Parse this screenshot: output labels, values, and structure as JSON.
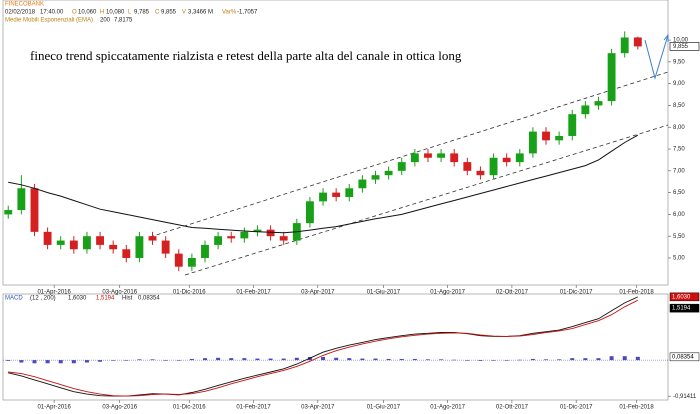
{
  "chart_data": [
    {
      "type": "candlestick",
      "header": {
        "symbol": "FINECOBANK",
        "date": "02/02/2018",
        "time": "17:40.00",
        "fields": [
          {
            "label": "O",
            "value": "10,060"
          },
          {
            "label": "H",
            "value": "10,080"
          },
          {
            "label": "L",
            "value": "9,785"
          },
          {
            "label": "C",
            "value": "9,855"
          },
          {
            "label": "V",
            "value": "3,3466 M"
          },
          {
            "label": "Var%",
            "value": "-1,7057"
          }
        ]
      },
      "annotation": "fineco trend spiccatamente rialzista e retest della parte alta del canale in ottica long",
      "up_color": "#18a018",
      "down_color": "#d42020",
      "open": [
        6.0,
        6.1,
        6.6,
        5.6,
        5.3,
        5.4,
        5.2,
        5.5,
        5.3,
        5.2,
        5.0,
        5.5,
        5.4,
        5.1,
        4.8,
        5.0,
        5.3,
        5.5,
        5.45,
        5.6,
        5.65,
        5.5,
        5.4,
        5.8,
        6.3,
        6.5,
        6.4,
        6.6,
        6.8,
        6.9,
        7.0,
        7.2,
        7.4,
        7.3,
        7.4,
        7.2,
        7.0,
        6.9,
        7.3,
        7.2,
        7.4,
        7.9,
        7.7,
        7.8,
        8.3,
        8.5,
        8.6,
        9.7,
        10.06
      ],
      "high": [
        6.2,
        6.9,
        6.7,
        5.7,
        5.5,
        5.5,
        5.6,
        5.6,
        5.4,
        5.3,
        5.6,
        5.6,
        5.5,
        5.2,
        5.1,
        5.4,
        5.6,
        5.6,
        5.7,
        5.75,
        5.75,
        5.6,
        5.9,
        6.4,
        6.6,
        6.6,
        6.7,
        6.9,
        7.0,
        7.1,
        7.3,
        7.5,
        7.5,
        7.5,
        7.5,
        7.3,
        7.1,
        7.4,
        7.4,
        7.5,
        8.0,
        8.0,
        7.9,
        8.4,
        8.6,
        8.7,
        9.8,
        10.2,
        10.08
      ],
      "low": [
        5.9,
        6.0,
        5.5,
        5.2,
        5.2,
        5.1,
        5.1,
        5.2,
        5.1,
        4.9,
        4.9,
        5.3,
        5.0,
        4.7,
        4.7,
        4.9,
        5.2,
        5.35,
        5.35,
        5.5,
        5.4,
        5.3,
        5.3,
        5.7,
        6.2,
        6.3,
        6.3,
        6.5,
        6.7,
        6.8,
        6.9,
        7.1,
        7.2,
        7.2,
        7.1,
        6.9,
        6.8,
        6.8,
        7.1,
        7.1,
        7.3,
        7.6,
        7.6,
        7.7,
        8.2,
        8.4,
        8.5,
        9.6,
        9.785
      ],
      "close": [
        6.1,
        6.6,
        5.6,
        5.3,
        5.4,
        5.2,
        5.5,
        5.3,
        5.2,
        5.0,
        5.5,
        5.4,
        5.1,
        4.8,
        5.0,
        5.3,
        5.5,
        5.45,
        5.6,
        5.65,
        5.5,
        5.4,
        5.8,
        6.3,
        6.5,
        6.4,
        6.6,
        6.8,
        6.9,
        7.0,
        7.2,
        7.4,
        7.3,
        7.4,
        7.2,
        7.0,
        6.9,
        7.3,
        7.2,
        7.4,
        7.9,
        7.7,
        7.8,
        8.3,
        8.5,
        8.6,
        9.7,
        10.06,
        9.855
      ],
      "series": [
        {
          "name": "Medie Mobili Esponenziali (EMA)",
          "period": "200",
          "last_label": "7,8175",
          "color": "#111111",
          "values": [
            6.74,
            6.68,
            6.6,
            6.5,
            6.42,
            6.32,
            6.22,
            6.12,
            6.06,
            6.0,
            5.94,
            5.88,
            5.82,
            5.76,
            5.7,
            5.68,
            5.66,
            5.64,
            5.62,
            5.6,
            5.59,
            5.58,
            5.6,
            5.64,
            5.68,
            5.72,
            5.78,
            5.84,
            5.9,
            5.95,
            6.0,
            6.08,
            6.16,
            6.24,
            6.32,
            6.4,
            6.48,
            6.56,
            6.64,
            6.72,
            6.8,
            6.88,
            6.96,
            7.04,
            7.12,
            7.25,
            7.45,
            7.65,
            7.8175
          ]
        }
      ],
      "price_marker": {
        "value": 9.855,
        "label": "9,855"
      },
      "xlim": [
        -0.4,
        50.3
      ],
      "ylim": [
        4.38,
        10.92
      ],
      "yticks": [
        {
          "value": 5,
          "label": "5,00"
        },
        {
          "value": 5.5,
          "label": "5,50"
        },
        {
          "value": 6,
          "label": "6,00"
        },
        {
          "value": 6.5,
          "label": "6,50"
        },
        {
          "value": 7,
          "label": "7,00"
        },
        {
          "value": 7.5,
          "label": "7,50"
        },
        {
          "value": 8,
          "label": "8,00"
        },
        {
          "value": 8.5,
          "label": "8,50"
        },
        {
          "value": 9,
          "label": "9,00"
        },
        {
          "value": 9.5,
          "label": "9,50"
        },
        {
          "value": 10,
          "label": "10,00"
        }
      ],
      "xticks": [
        {
          "value": 3.5,
          "label": "01-Apr-2016"
        },
        {
          "value": 8.5,
          "label": "03-Ago-2016"
        },
        {
          "value": 13.8,
          "label": "01-Dic-2016"
        },
        {
          "value": 18.7,
          "label": "01-Feb-2017"
        },
        {
          "value": 23.6,
          "label": "03-Apr-2017"
        },
        {
          "value": 28.6,
          "label": "01-Giu-2017"
        },
        {
          "value": 33.5,
          "label": "01-Ago-2017"
        },
        {
          "value": 38.4,
          "label": "02-Ott-2017"
        },
        {
          "value": 43.3,
          "label": "01-Dic-2017"
        },
        {
          "value": 47.9,
          "label": "01-Feb-2018"
        }
      ],
      "grid": false
    },
    {
      "type": "macd",
      "title": "MACD",
      "params": "(12 , 200)",
      "series": [
        {
          "color": "#111111",
          "last_label": "1,6030",
          "values": [
            -0.32,
            -0.4,
            -0.5,
            -0.6,
            -0.7,
            -0.8,
            -0.86,
            -0.9,
            -0.91,
            -0.91,
            -0.88,
            -0.85,
            -0.86,
            -0.88,
            -0.82,
            -0.74,
            -0.64,
            -0.55,
            -0.46,
            -0.38,
            -0.3,
            -0.22,
            -0.1,
            0.05,
            0.2,
            0.3,
            0.38,
            0.45,
            0.52,
            0.57,
            0.62,
            0.66,
            0.68,
            0.7,
            0.7,
            0.67,
            0.62,
            0.6,
            0.6,
            0.62,
            0.68,
            0.72,
            0.76,
            0.85,
            0.95,
            1.05,
            1.25,
            1.45,
            1.603
          ]
        },
        {
          "color": "#cc1111",
          "last_label": "1,5194",
          "values": [
            -0.3,
            -0.34,
            -0.42,
            -0.52,
            -0.62,
            -0.72,
            -0.8,
            -0.86,
            -0.9,
            -0.91,
            -0.9,
            -0.87,
            -0.86,
            -0.87,
            -0.85,
            -0.79,
            -0.7,
            -0.6,
            -0.51,
            -0.42,
            -0.34,
            -0.26,
            -0.16,
            -0.03,
            0.12,
            0.24,
            0.33,
            0.41,
            0.48,
            0.54,
            0.59,
            0.63,
            0.66,
            0.68,
            0.69,
            0.68,
            0.64,
            0.61,
            0.6,
            0.61,
            0.65,
            0.7,
            0.74,
            0.8,
            0.9,
            1.0,
            1.15,
            1.35,
            1.5194
          ]
        }
      ],
      "histogram": {
        "name": "Hist",
        "color": "#4a4ab8",
        "last_label": "0,08354",
        "values": [
          -0.02,
          -0.06,
          -0.08,
          -0.08,
          -0.08,
          -0.08,
          -0.06,
          -0.04,
          -0.01,
          0,
          0.02,
          0.02,
          0,
          -0.01,
          0.03,
          0.05,
          0.06,
          0.05,
          0.05,
          0.04,
          0.04,
          0.04,
          0.06,
          0.08,
          0.08,
          0.06,
          0.05,
          0.04,
          0.04,
          0.03,
          0.03,
          0.03,
          0.02,
          0.02,
          0.01,
          -0.01,
          -0.02,
          -0.01,
          0,
          0.01,
          0.03,
          0.02,
          0.02,
          0.05,
          0.05,
          0.05,
          0.1,
          0.1,
          0.08354
        ]
      },
      "xlim": [
        -0.4,
        50.3
      ],
      "ylim": [
        -1.01,
        1.65
      ],
      "yticks": [
        {
          "value": -0.91411,
          "label": "-0,91411"
        }
      ],
      "xticks": [
        {
          "value": 3.5,
          "label": "01-Apr-2016"
        },
        {
          "value": 8.5,
          "label": "03-Ago-2016"
        },
        {
          "value": 13.8,
          "label": "01-Dic-2016"
        },
        {
          "value": 18.7,
          "label": "01-Feb-2017"
        },
        {
          "value": 23.6,
          "label": "03-Apr-2017"
        },
        {
          "value": 28.6,
          "label": "01-Giu-2017"
        },
        {
          "value": 33.5,
          "label": "01-Ago-2017"
        },
        {
          "value": 38.4,
          "label": "02-Ott-2017"
        },
        {
          "value": 43.3,
          "label": "01-Dic-2017"
        },
        {
          "value": 47.9,
          "label": "01-Feb-2018"
        }
      ],
      "grid": false
    }
  ]
}
